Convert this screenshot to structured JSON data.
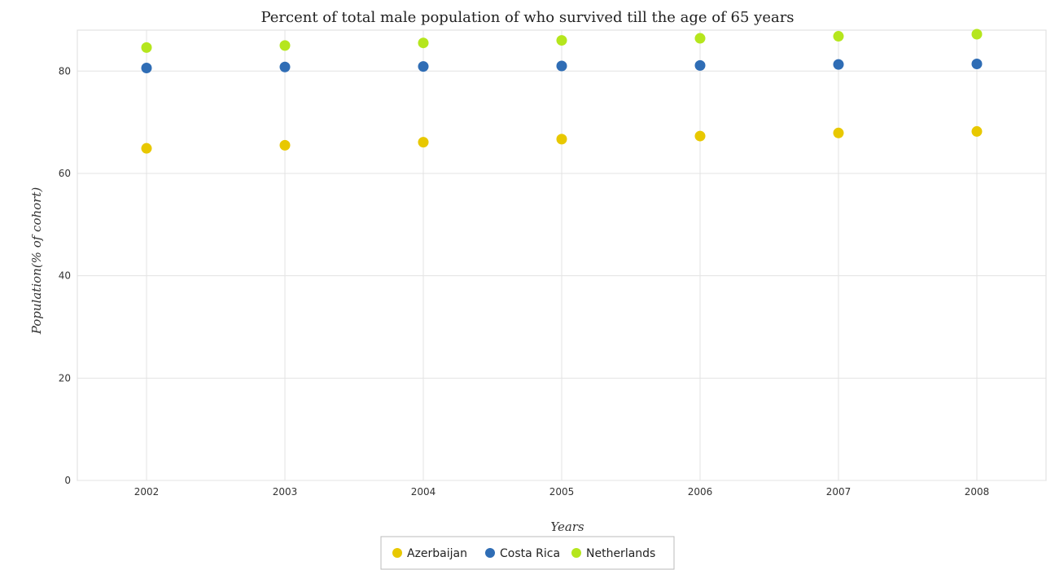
{
  "chart_data": {
    "type": "scatter",
    "title": "Percent of total male population of who survived till the age of 65 years",
    "xlabel": "Years",
    "ylabel": "Population(% of cohort)",
    "categories": [
      "2002",
      "2003",
      "2004",
      "2005",
      "2006",
      "2007",
      "2008"
    ],
    "ylim": [
      0,
      88
    ],
    "yticks": [
      "0",
      "20",
      "40",
      "60",
      "80"
    ],
    "grid": true,
    "legend_position": "bottom-center",
    "series": [
      {
        "name": "Azerbaijan",
        "color": "#e8c800",
        "values": [
          64.9,
          65.5,
          66.1,
          66.7,
          67.3,
          67.9,
          68.2
        ]
      },
      {
        "name": "Costa Rica",
        "color": "#2f6db5",
        "values": [
          80.6,
          80.8,
          80.9,
          81.0,
          81.1,
          81.3,
          81.4
        ]
      },
      {
        "name": "Netherlands",
        "color": "#b5e61d",
        "values": [
          84.6,
          85.0,
          85.5,
          86.0,
          86.4,
          86.8,
          87.2
        ]
      }
    ]
  }
}
